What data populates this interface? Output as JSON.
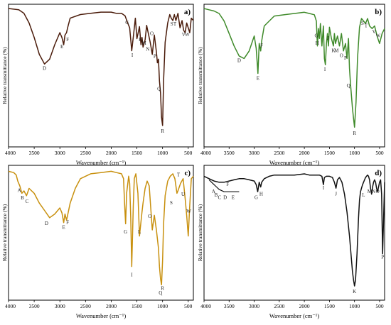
{
  "chart_data": [
    {
      "type": "line",
      "panel_label": "a)",
      "color": "#4a1b0a",
      "xlabel": "Wavenumber (cm⁻¹)",
      "ylabel": "Relative transmittance (%)",
      "xlim": [
        4000,
        400
      ],
      "x_ticks": [
        4000,
        3500,
        3000,
        2500,
        2000,
        1500,
        1000,
        500
      ],
      "series": [
        {
          "x": [
            4000,
            3800,
            3700,
            3600,
            3500,
            3400,
            3300,
            3200,
            3100,
            3000,
            2960,
            2925,
            2900,
            2870,
            2850,
            2800,
            2600,
            2400,
            2200,
            2000,
            1900,
            1800,
            1730,
            1680,
            1640,
            1600,
            1560,
            1530,
            1500,
            1450,
            1420,
            1400,
            1380,
            1340,
            1310,
            1280,
            1240,
            1200,
            1160,
            1120,
            1100,
            1080,
            1060,
            1040,
            1020,
            1000,
            980,
            950,
            900,
            860,
            830,
            800,
            770,
            740,
            700,
            660,
            620,
            590,
            560,
            530,
            500,
            470,
            440,
            400
          ],
          "y": [
            100,
            99,
            96,
            88,
            76,
            62,
            54,
            58,
            70,
            80,
            76,
            70,
            78,
            80,
            84,
            92,
            95,
            96,
            97,
            97,
            96,
            96,
            94,
            88,
            84,
            65,
            80,
            92,
            75,
            85,
            70,
            76,
            68,
            74,
            86,
            80,
            72,
            62,
            78,
            64,
            55,
            58,
            40,
            30,
            10,
            3,
            40,
            72,
            88,
            95,
            92,
            90,
            95,
            90,
            96,
            84,
            90,
            82,
            80,
            88,
            84,
            80,
            92,
            90
          ]
        }
      ],
      "annotations": [
        {
          "label": "D",
          "x": 3300,
          "y": 49
        },
        {
          "label": "E",
          "x": 2960,
          "y": 67
        },
        {
          "label": "F",
          "x": 2850,
          "y": 73
        },
        {
          "label": "G",
          "x": 1690,
          "y": 87
        },
        {
          "label": "I",
          "x": 1590,
          "y": 60
        },
        {
          "label": "K",
          "x": 1430,
          "y": 73
        },
        {
          "label": "M",
          "x": 1360,
          "y": 70
        },
        {
          "label": "N",
          "x": 1290,
          "y": 65
        },
        {
          "label": "O",
          "x": 1210,
          "y": 78
        },
        {
          "label": "P",
          "x": 1150,
          "y": 59
        },
        {
          "label": "Q",
          "x": 1070,
          "y": 32
        },
        {
          "label": "R",
          "x": 1000,
          "y": -3
        },
        {
          "label": "S",
          "x": 820,
          "y": 86
        },
        {
          "label": "T",
          "x": 760,
          "y": 86
        },
        {
          "label": "V",
          "x": 590,
          "y": 77
        },
        {
          "label": "W",
          "x": 520,
          "y": 77
        }
      ]
    },
    {
      "type": "line",
      "panel_label": "b)",
      "color": "#3f8a2a",
      "xlabel": "Wavenumber (cm⁻¹)",
      "ylabel": "Relative transmittance (%)",
      "xlim": [
        4000,
        400
      ],
      "x_ticks": [
        4000,
        3500,
        3000,
        2500,
        2000,
        1500,
        1000,
        500
      ],
      "series": [
        {
          "x": [
            4000,
            3900,
            3800,
            3700,
            3600,
            3500,
            3400,
            3300,
            3200,
            3100,
            3000,
            2960,
            2925,
            2900,
            2870,
            2850,
            2800,
            2600,
            2400,
            2200,
            2000,
            1900,
            1800,
            1760,
            1740,
            1720,
            1700,
            1680,
            1650,
            1620,
            1600,
            1580,
            1560,
            1540,
            1520,
            1500,
            1460,
            1420,
            1400,
            1380,
            1340,
            1300,
            1260,
            1220,
            1180,
            1150,
            1120,
            1100,
            1080,
            1060,
            1040,
            1020,
            1000,
            970,
            940,
            900,
            860,
            820,
            780,
            740,
            700,
            650,
            600,
            550,
            500,
            450,
            400
          ],
          "y": [
            100,
            99,
            98,
            96,
            90,
            80,
            70,
            62,
            60,
            66,
            78,
            68,
            48,
            72,
            66,
            74,
            86,
            94,
            95,
            96,
            97,
            96,
            95,
            90,
            70,
            84,
            76,
            88,
            70,
            86,
            60,
            55,
            72,
            80,
            70,
            85,
            76,
            70,
            80,
            72,
            78,
            70,
            80,
            66,
            72,
            60,
            76,
            52,
            40,
            30,
            20,
            12,
            5,
            25,
            60,
            85,
            92,
            90,
            88,
            92,
            86,
            84,
            86,
            78,
            72,
            80,
            84
          ]
        }
      ],
      "annotations": [
        {
          "label": "D",
          "x": 3300,
          "y": 57
        },
        {
          "label": "E",
          "x": 2925,
          "y": 43
        },
        {
          "label": "F",
          "x": 2850,
          "y": 69
        },
        {
          "label": "G",
          "x": 1760,
          "y": 77
        },
        {
          "label": "H",
          "x": 1745,
          "y": 71
        },
        {
          "label": "I",
          "x": 1590,
          "y": 50
        },
        {
          "label": "J",
          "x": 1530,
          "y": 75
        },
        {
          "label": "K",
          "x": 1420,
          "y": 65
        },
        {
          "label": "M",
          "x": 1360,
          "y": 65
        },
        {
          "label": "O",
          "x": 1260,
          "y": 61
        },
        {
          "label": "P",
          "x": 1180,
          "y": 59
        },
        {
          "label": "Q",
          "x": 1120,
          "y": 37
        },
        {
          "label": "R",
          "x": 1000,
          "y": -1
        },
        {
          "label": "S",
          "x": 840,
          "y": 87
        },
        {
          "label": "T",
          "x": 770,
          "y": 85
        },
        {
          "label": "V",
          "x": 610,
          "y": 80
        },
        {
          "label": "W",
          "x": 530,
          "y": 77
        }
      ]
    },
    {
      "type": "line",
      "panel_label": "c)",
      "color": "#c8900e",
      "xlabel": "Wavenumber (cm⁻¹)",
      "ylabel": "Relative transmittance (%)",
      "xlim": [
        4000,
        400
      ],
      "x_ticks": [
        4000,
        3500,
        3000,
        2500,
        2000,
        1500,
        1000,
        500
      ],
      "series": [
        {
          "x": [
            4000,
            3900,
            3850,
            3820,
            3780,
            3740,
            3700,
            3650,
            3600,
            3500,
            3400,
            3300,
            3200,
            3100,
            3000,
            2960,
            2925,
            2900,
            2870,
            2850,
            2800,
            2700,
            2600,
            2400,
            2200,
            2000,
            1900,
            1800,
            1760,
            1740,
            1720,
            1700,
            1660,
            1640,
            1620,
            1600,
            1570,
            1550,
            1520,
            1480,
            1450,
            1400,
            1380,
            1340,
            1300,
            1260,
            1200,
            1160,
            1120,
            1080,
            1060,
            1040,
            1020,
            1000,
            980,
            950,
            900,
            850,
            800,
            760,
            720,
            700,
            650,
            600,
            560,
            530,
            500,
            470,
            440,
            400
          ],
          "y": [
            98,
            97,
            95,
            90,
            86,
            80,
            82,
            78,
            84,
            80,
            72,
            66,
            60,
            63,
            68,
            64,
            56,
            63,
            58,
            62,
            72,
            84,
            92,
            96,
            97,
            98,
            97,
            96,
            92,
            72,
            55,
            80,
            94,
            88,
            60,
            20,
            70,
            92,
            96,
            80,
            45,
            65,
            72,
            84,
            90,
            86,
            50,
            62,
            50,
            35,
            20,
            10,
            5,
            25,
            55,
            78,
            90,
            94,
            96,
            92,
            80,
            82,
            88,
            92,
            76,
            62,
            45,
            70,
            92,
            94
          ]
        }
      ],
      "annotations": [
        {
          "label": "A",
          "x": 3790,
          "y": 81
        },
        {
          "label": "B",
          "x": 3730,
          "y": 75
        },
        {
          "label": "C",
          "x": 3640,
          "y": 72
        },
        {
          "label": "D",
          "x": 3260,
          "y": 54
        },
        {
          "label": "E",
          "x": 2925,
          "y": 51
        },
        {
          "label": "F",
          "x": 2850,
          "y": 55
        },
        {
          "label": "G",
          "x": 1720,
          "y": 47
        },
        {
          "label": "I",
          "x": 1600,
          "y": 12
        },
        {
          "label": "L",
          "x": 1450,
          "y": 47
        },
        {
          "label": "O",
          "x": 1250,
          "y": 60
        },
        {
          "label": "Q",
          "x": 1040,
          "y": -3
        },
        {
          "label": "R",
          "x": 1000,
          "y": 1
        },
        {
          "label": "S",
          "x": 830,
          "y": 71
        },
        {
          "label": "T",
          "x": 690,
          "y": 94
        },
        {
          "label": "U",
          "x": 600,
          "y": 78
        },
        {
          "label": "W",
          "x": 490,
          "y": 64
        }
      ]
    },
    {
      "type": "line",
      "panel_label": "d)",
      "color": "#111111",
      "xlabel": "Wavenumber (cm⁻¹)",
      "ylabel": "Relative transmittance (%)",
      "xlim": [
        4000,
        400
      ],
      "x_ticks": [
        4000,
        3500,
        3000,
        2500,
        2000,
        1500,
        1000,
        500
      ],
      "series": [
        {
          "x": [
            4000,
            3900,
            3800,
            3700,
            3600,
            3500,
            3400,
            3300,
            3200,
            3100,
            3000,
            2960,
            2930,
            2900,
            2870,
            2850,
            2800,
            2700,
            2600,
            2400,
            2200,
            2000,
            1900,
            1800,
            1700,
            1650,
            1620,
            1600,
            1560,
            1500,
            1440,
            1400,
            1370,
            1340,
            1300,
            1250,
            1200,
            1150,
            1100,
            1060,
            1040,
            1020,
            1000,
            980,
            950,
            920,
            900,
            880,
            860,
            840,
            820,
            800,
            780,
            760,
            740,
            720,
            700,
            680,
            660,
            640,
            620,
            600,
            580,
            560,
            540,
            520,
            500,
            480,
            460,
            440,
            420,
            400
          ],
          "y": [
            95,
            93,
            91,
            90,
            90,
            91,
            92,
            93,
            93,
            92,
            91,
            88,
            82,
            90,
            86,
            90,
            93,
            95,
            96,
            96,
            96,
            97,
            96,
            96,
            96,
            95,
            88,
            94,
            95,
            95,
            94,
            90,
            85,
            92,
            94,
            90,
            80,
            65,
            45,
            25,
            15,
            8,
            3,
            8,
            30,
            60,
            75,
            82,
            85,
            88,
            90,
            92,
            94,
            95,
            96,
            95,
            92,
            85,
            80,
            86,
            90,
            92,
            90,
            85,
            82,
            86,
            90,
            92,
            80,
            30,
            60,
            90
          ]
        },
        {
          "x": [
            3900,
            3850,
            3800,
            3750,
            3700,
            3650,
            3600,
            3550,
            3500,
            3450,
            3400,
            3350,
            3300
          ],
          "y": [
            92,
            90,
            88,
            86,
            84,
            83,
            82,
            82,
            82,
            82,
            82,
            82,
            82
          ]
        }
      ],
      "annotations": [
        {
          "label": "A",
          "x": 3810,
          "y": 81
        },
        {
          "label": "B",
          "x": 3760,
          "y": 78
        },
        {
          "label": "C",
          "x": 3690,
          "y": 76
        },
        {
          "label": "D",
          "x": 3580,
          "y": 76
        },
        {
          "label": "E",
          "x": 3420,
          "y": 76
        },
        {
          "label": "F",
          "x": 3530,
          "y": 87
        },
        {
          "label": "G",
          "x": 2960,
          "y": 76
        },
        {
          "label": "H",
          "x": 2860,
          "y": 79
        },
        {
          "label": "I",
          "x": 1620,
          "y": 84
        },
        {
          "label": "J",
          "x": 1370,
          "y": 79
        },
        {
          "label": "K",
          "x": 1000,
          "y": -3
        },
        {
          "label": "L",
          "x": 820,
          "y": 78
        },
        {
          "label": "M",
          "x": 700,
          "y": 81
        },
        {
          "label": "N",
          "x": 620,
          "y": 81
        },
        {
          "label": "O",
          "x": 540,
          "y": 81
        },
        {
          "label": "P",
          "x": 440,
          "y": 26
        }
      ]
    }
  ]
}
